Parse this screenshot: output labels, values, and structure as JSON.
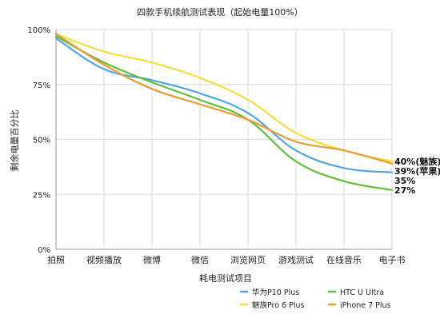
{
  "chart_data": {
    "type": "line",
    "title": "四款手机续航测试表现（起始电量100%）",
    "xlabel": "耗电测试项目",
    "ylabel": "剩余电量百分比",
    "categories": [
      "拍照",
      "视频播放",
      "微博",
      "微信",
      "浏览网页",
      "游戏测试",
      "在线音乐",
      "电子书"
    ],
    "ylim": [
      0,
      100
    ],
    "yticks": [
      0,
      25,
      50,
      75,
      100
    ],
    "ytick_labels": [
      "0%",
      "25%",
      "50%",
      "75%",
      "100%"
    ],
    "grid": true,
    "legend_position": "bottom-right",
    "series": [
      {
        "name": "华为P10 Plus",
        "color": "#4ea6e6",
        "values": [
          96,
          82,
          77,
          71,
          62,
          45,
          37,
          35
        ]
      },
      {
        "name": "HTC U Ultra",
        "color": "#5fbf3a",
        "values": [
          97,
          85,
          76,
          68,
          59,
          40,
          31,
          27
        ]
      },
      {
        "name": "魅族Pro 6 Plus",
        "color": "#f6dc3c",
        "values": [
          98,
          90,
          85,
          78,
          68,
          53,
          45,
          40
        ]
      },
      {
        "name": "iPhone 7 Plus",
        "color": "#ee9a34",
        "values": [
          98,
          84,
          73,
          66,
          59,
          49,
          45,
          39
        ]
      }
    ],
    "end_labels": [
      {
        "text": "40%(魅族)",
        "value": 40
      },
      {
        "text": "39%(苹果)",
        "value": 39
      },
      {
        "text": "35%",
        "value": 35
      },
      {
        "text": "27%",
        "value": 27
      }
    ]
  }
}
